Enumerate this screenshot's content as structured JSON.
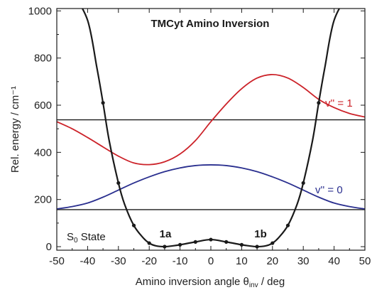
{
  "chart_data": {
    "type": "line",
    "title": "TMCyt Amino Inversion",
    "xlabel": "Amino inversion angle θ",
    "xlabel_sub": "inv",
    "xlabel_suffix": " / deg",
    "ylabel": "Rel. energy / cm⁻¹",
    "xlim": [
      -50,
      50
    ],
    "ylim": [
      -15,
      1010
    ],
    "xticks": [
      -50,
      -40,
      -30,
      -20,
      -10,
      0,
      10,
      20,
      30,
      40,
      50
    ],
    "yticks": [
      0,
      200,
      400,
      600,
      800,
      1000
    ],
    "grid": false,
    "potential": {
      "color": "#1a1a1a",
      "x": [
        -45,
        -40,
        -37,
        -35,
        -33,
        -30,
        -28,
        -25,
        -22,
        -20,
        -18,
        -15,
        -12,
        -10,
        -5,
        0,
        5,
        10,
        12,
        15,
        18,
        20,
        22,
        25,
        28,
        30,
        33,
        35,
        37,
        40,
        45
      ],
      "y": [
        1080,
        960,
        760,
        610,
        450,
        270,
        180,
        90,
        38,
        15,
        4,
        0,
        4,
        8,
        20,
        30,
        20,
        8,
        4,
        0,
        4,
        15,
        38,
        90,
        180,
        270,
        450,
        610,
        760,
        960,
        1080
      ],
      "markers_x": [
        -35,
        -30,
        -25,
        -20,
        -15,
        -10,
        -5,
        0,
        5,
        10,
        15,
        20,
        25,
        30,
        35
      ],
      "markers_y": [
        610,
        270,
        90,
        15,
        0,
        8,
        20,
        30,
        20,
        8,
        0,
        15,
        90,
        270,
        610
      ]
    },
    "levels": [
      {
        "name": "v'' = 0",
        "energy": 157,
        "color": "#1a1a1a"
      },
      {
        "name": "v'' = 1",
        "energy": 538,
        "color": "#1a1a1a"
      }
    ],
    "series": [
      {
        "name": "v'' = 0",
        "color": "#2a2f8f",
        "x": [
          -50,
          -45,
          -40,
          -35,
          -30,
          -25,
          -20,
          -15,
          -10,
          -5,
          0,
          5,
          10,
          15,
          20,
          25,
          30,
          35,
          40,
          45,
          50
        ],
        "values": [
          160,
          170,
          185,
          210,
          240,
          270,
          296,
          318,
          334,
          344,
          347,
          344,
          334,
          318,
          296,
          270,
          240,
          210,
          185,
          170,
          160
        ]
      },
      {
        "name": "v'' = 1",
        "color": "#cc2229",
        "x": [
          -50,
          -45,
          -40,
          -35,
          -30,
          -25,
          -20,
          -15,
          -10,
          -5,
          0,
          5,
          10,
          15,
          20,
          25,
          30,
          35,
          40,
          45,
          50
        ],
        "values": [
          530,
          500,
          463,
          423,
          384,
          355,
          348,
          360,
          393,
          450,
          530,
          605,
          670,
          715,
          730,
          715,
          675,
          625,
          590,
          565,
          550
        ]
      }
    ],
    "annotations": {
      "state_main": "S",
      "state_sub": "0",
      "state_suffix": " State",
      "min_left": "1a",
      "min_right": "1b"
    }
  }
}
